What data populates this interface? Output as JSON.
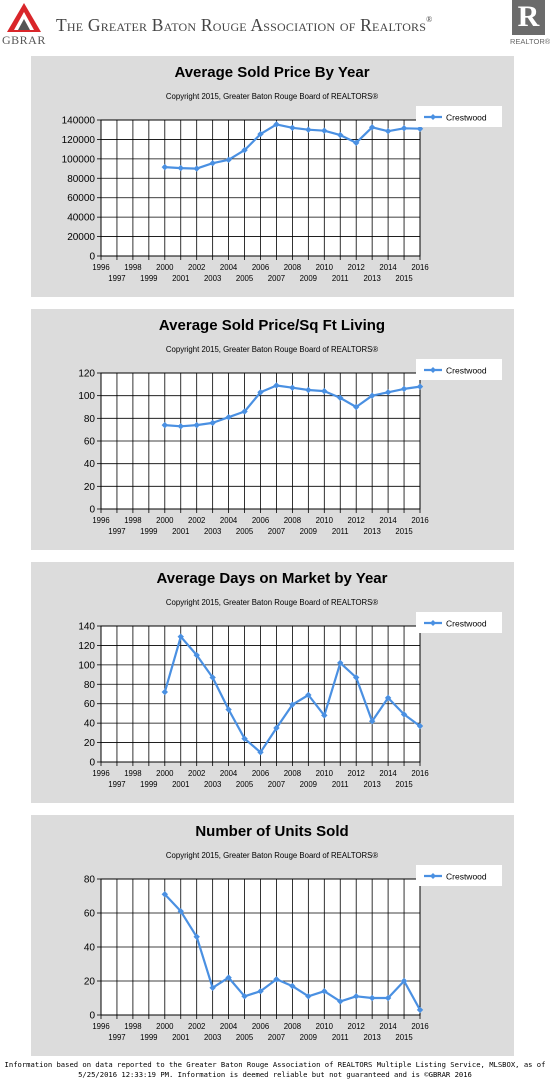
{
  "header": {
    "logo_text": "GBRAR",
    "title": "The Greater Baton Rouge Association of Realtors",
    "registered": "®",
    "realtor_mark": "R",
    "realtor_label": "REALTOR®"
  },
  "colors": {
    "panel_bg": "#dcdcdc",
    "series": "#4a90e2",
    "grid": "#000000"
  },
  "chart_data": [
    {
      "type": "line",
      "title": "Average Sold Price By Year",
      "subtitle": "Copyright 2015, Greater Baton Rouge Board of REALTORS®",
      "x": [
        2000,
        2001,
        2002,
        2003,
        2004,
        2005,
        2006,
        2007,
        2008,
        2009,
        2010,
        2011,
        2012,
        2013,
        2014,
        2015,
        2016
      ],
      "series": [
        {
          "name": "Crestwood",
          "values": [
            91500,
            90500,
            90000,
            95500,
            99000,
            109000,
            125500,
            135500,
            132000,
            130000,
            129000,
            124500,
            116500,
            132500,
            128500,
            131500,
            131000
          ]
        }
      ],
      "xlim": [
        1996,
        2016
      ],
      "ylim": [
        0,
        140000
      ],
      "yticks": [
        0,
        20000,
        40000,
        60000,
        80000,
        100000,
        120000,
        140000
      ],
      "xticks_top": [
        "1996",
        "1998",
        "2000",
        "2002",
        "2004",
        "2006",
        "2008",
        "2010",
        "2012",
        "2014",
        "2016"
      ],
      "xticks_bottom": [
        "1997",
        "1999",
        "2001",
        "2003",
        "2005",
        "2007",
        "2009",
        "2011",
        "2013",
        "2015"
      ],
      "legend_position": "top-right",
      "grid": true
    },
    {
      "type": "line",
      "title": "Average Sold Price/Sq Ft Living",
      "subtitle": "Copyright 2015, Greater Baton Rouge Board of REALTORS®",
      "x": [
        2000,
        2001,
        2002,
        2003,
        2004,
        2005,
        2006,
        2007,
        2008,
        2009,
        2010,
        2011,
        2012,
        2013,
        2014,
        2015,
        2016
      ],
      "series": [
        {
          "name": "Crestwood",
          "values": [
            74,
            73,
            74,
            76,
            81,
            86,
            103,
            109,
            107,
            105,
            104,
            98,
            90,
            100,
            103,
            106,
            108
          ]
        }
      ],
      "xlim": [
        1996,
        2016
      ],
      "ylim": [
        0,
        120
      ],
      "yticks": [
        0,
        20,
        40,
        60,
        80,
        100,
        120
      ],
      "xticks_top": [
        "1996",
        "1998",
        "2000",
        "2002",
        "2004",
        "2006",
        "2008",
        "2010",
        "2012",
        "2014",
        "2016"
      ],
      "xticks_bottom": [
        "1997",
        "1999",
        "2001",
        "2003",
        "2005",
        "2007",
        "2009",
        "2011",
        "2013",
        "2015"
      ],
      "legend_position": "top-right",
      "grid": true
    },
    {
      "type": "line",
      "title": "Average Days on Market by Year",
      "subtitle": "Copyright 2015, Greater Baton Rouge Board of REALTORS®",
      "x": [
        2000,
        2001,
        2002,
        2003,
        2004,
        2005,
        2006,
        2007,
        2008,
        2009,
        2010,
        2011,
        2012,
        2013,
        2014,
        2015,
        2016
      ],
      "series": [
        {
          "name": "Crestwood",
          "values": [
            72,
            129,
            110,
            87,
            54,
            24,
            10,
            35,
            59,
            69,
            48,
            102,
            87,
            42,
            66,
            49,
            37
          ]
        }
      ],
      "xlim": [
        1996,
        2016
      ],
      "ylim": [
        0,
        140
      ],
      "yticks": [
        0,
        20,
        40,
        60,
        80,
        100,
        120,
        140
      ],
      "xticks_top": [
        "1996",
        "1998",
        "2000",
        "2002",
        "2004",
        "2006",
        "2008",
        "2010",
        "2012",
        "2014",
        "2016"
      ],
      "xticks_bottom": [
        "1997",
        "1999",
        "2001",
        "2003",
        "2005",
        "2007",
        "2009",
        "2011",
        "2013",
        "2015"
      ],
      "legend_position": "top-right",
      "grid": true
    },
    {
      "type": "line",
      "title": "Number of Units Sold",
      "subtitle": "Copyright 2015, Greater Baton Rouge Board of REALTORS®",
      "x": [
        2000,
        2001,
        2002,
        2003,
        2004,
        2005,
        2006,
        2007,
        2008,
        2009,
        2010,
        2011,
        2012,
        2013,
        2014,
        2015,
        2016
      ],
      "series": [
        {
          "name": "Crestwood",
          "values": [
            71,
            61,
            46,
            16,
            22,
            11,
            14,
            21,
            17,
            11,
            14,
            8,
            11,
            10,
            10,
            20,
            3
          ]
        }
      ],
      "xlim": [
        1996,
        2016
      ],
      "ylim": [
        0,
        80
      ],
      "yticks": [
        0,
        20,
        40,
        60,
        80
      ],
      "xticks_top": [
        "1996",
        "1998",
        "2000",
        "2002",
        "2004",
        "2006",
        "2008",
        "2010",
        "2012",
        "2014",
        "2016"
      ],
      "xticks_bottom": [
        "1997",
        "1999",
        "2001",
        "2003",
        "2005",
        "2007",
        "2009",
        "2011",
        "2013",
        "2015"
      ],
      "legend_position": "top-right",
      "grid": true
    }
  ],
  "footer": {
    "line1": "Information based on data reported to the Greater Baton Rouge Association of REALTORS Multiple Listing Service, MLSBOX, as of",
    "line2": "5/25/2016 12:33:19 PM. Information is deemed reliable but not guaranteed and is ©GBRAR 2016"
  }
}
